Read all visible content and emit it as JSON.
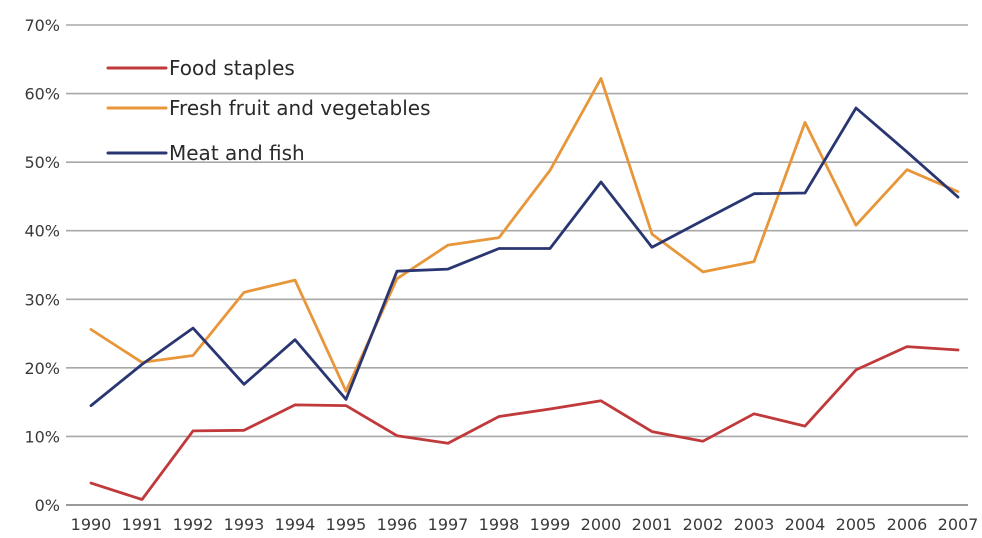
{
  "chart_data": {
    "type": "line",
    "title": "",
    "xlabel": "",
    "ylabel": "",
    "ylim": [
      0,
      70
    ],
    "y_tick_labels": [
      "0%",
      "10%",
      "20%",
      "30%",
      "40%",
      "50%",
      "60%",
      "70%"
    ],
    "y_tick_values": [
      0,
      10,
      20,
      30,
      40,
      50,
      60,
      70
    ],
    "categories": [
      "1990",
      "1991",
      "1992",
      "1993",
      "1994",
      "1995",
      "1996",
      "1997",
      "1998",
      "1999",
      "2000",
      "2001",
      "2002",
      "2003",
      "2004",
      "2005",
      "2006",
      "2007"
    ],
    "grid": true,
    "legend_position": "top-left",
    "series": [
      {
        "name": "Food staples",
        "color": "#c0393b",
        "values": [
          3.2,
          0.8,
          10.8,
          10.9,
          14.6,
          14.5,
          10.1,
          9.0,
          12.9,
          14.0,
          15.2,
          10.7,
          9.3,
          13.3,
          11.5,
          19.7,
          23.1,
          22.6
        ]
      },
      {
        "name": "Fresh fruit and vegetables",
        "color": "#e8963a",
        "values": [
          25.6,
          20.8,
          21.8,
          31.0,
          32.8,
          16.6,
          33.0,
          37.9,
          39.0,
          48.8,
          62.2,
          39.5,
          34.0,
          35.5,
          55.8,
          40.8,
          48.9,
          45.7
        ]
      },
      {
        "name": "Meat and fish",
        "color": "#2a3672",
        "values": [
          14.5,
          20.5,
          25.8,
          17.6,
          24.1,
          15.4,
          34.1,
          34.4,
          37.4,
          37.4,
          47.1,
          37.6,
          41.5,
          45.4,
          45.5,
          57.9,
          51.5,
          44.9
        ]
      }
    ]
  }
}
